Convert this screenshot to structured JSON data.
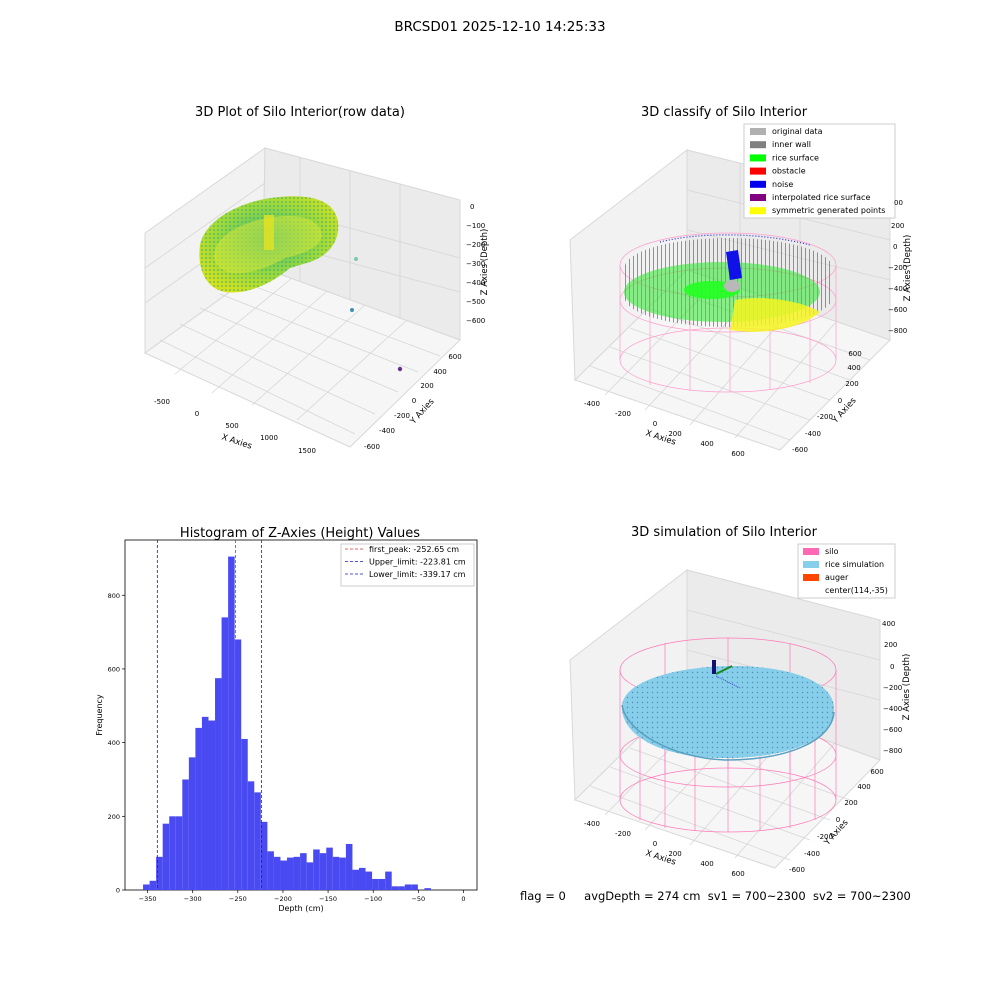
{
  "figure": {
    "suptitle": "BRCSD01 2025-12-10 14:25:33"
  },
  "status": {
    "flag": "flag = 0",
    "avg_depth": "avgDepth = 274 cm",
    "sv1": "sv1 = 700~2300",
    "sv2": "sv2 = 700~2300"
  },
  "chart_data": [
    {
      "type": "scatter",
      "projection": "3d",
      "title": "3D Plot of Silo Interior(row data)",
      "xlabel": "X Axies",
      "ylabel": "Y Axies",
      "zlabel": "Z Axies (Depth)",
      "x_ticks": [
        "-500",
        "0",
        "500",
        "1000",
        "1500"
      ],
      "y_ticks": [
        "-600",
        "-400",
        "-200",
        "0",
        "200",
        "400",
        "600"
      ],
      "z_ticks": [
        "0",
        "−100",
        "−200",
        "−300",
        "−400",
        "−500",
        "−600"
      ],
      "colormap": "viridis",
      "outliers": [
        {
          "color": "#7cc8b0"
        },
        {
          "color": "#3d8fb5"
        },
        {
          "color": "#6a2f8a"
        }
      ]
    },
    {
      "type": "scatter",
      "projection": "3d",
      "title": "3D classify of Silo Interior",
      "xlabel": "X Axies",
      "ylabel": "Y Axies",
      "zlabel": "Z Axies (Depth)",
      "x_ticks": [
        "-400",
        "-200",
        "0",
        "200",
        "400",
        "600"
      ],
      "y_ticks": [
        "-600",
        "-400",
        "-200",
        "0",
        "200",
        "400",
        "600"
      ],
      "z_ticks": [
        "200",
        "0",
        "−200",
        "−400",
        "−600",
        "−800"
      ],
      "z_partial": "00",
      "legend_position": "top-right",
      "legend": [
        {
          "label": "original data",
          "color": "#b0b0b0"
        },
        {
          "label": "inner wall",
          "color": "#808080"
        },
        {
          "label": "rice surface",
          "color": "#00ff00"
        },
        {
          "label": "obstacle",
          "color": "#ff0000"
        },
        {
          "label": "noise",
          "color": "#0000ee"
        },
        {
          "label": "interpolated rice surface",
          "color": "#800080"
        },
        {
          "label": "symmetric generated points",
          "color": "#ffff00"
        }
      ]
    },
    {
      "type": "bar",
      "title": "Histogram of Z-Axies (Height) Values",
      "xlabel": "Depth (cm)",
      "ylabel": "Frequency",
      "xlim": [
        -375,
        15
      ],
      "ylim": [
        0,
        950
      ],
      "x_ticks": [
        "−350",
        "−300",
        "−250",
        "−200",
        "−150",
        "−100",
        "−50",
        "0"
      ],
      "x_tick_values": [
        -350,
        -300,
        -250,
        -200,
        -150,
        -100,
        -50,
        0
      ],
      "y_ticks": [
        "0",
        "200",
        "400",
        "600",
        "800"
      ],
      "y_tick_values": [
        0,
        200,
        400,
        600,
        800
      ],
      "bar_color": "#4a4af2",
      "bin_start": -355,
      "bin_width": 7.25,
      "values": [
        15,
        25,
        90,
        180,
        200,
        200,
        300,
        360,
        440,
        470,
        460,
        575,
        740,
        905,
        680,
        410,
        295,
        265,
        185,
        105,
        90,
        80,
        88,
        90,
        100,
        75,
        110,
        100,
        115,
        90,
        88,
        125,
        55,
        60,
        50,
        30,
        30,
        50,
        10,
        10,
        15,
        15,
        0,
        5
      ],
      "lines": [
        {
          "label": "first_peak: -252.65 cm",
          "x": -252.65,
          "color": "#e03030",
          "style": "dashed"
        },
        {
          "label": "Upper_limit: -223.81 cm",
          "x": -223.81,
          "color": "#1a1ad0",
          "style": "dashed"
        },
        {
          "label": "Lower_limit: -339.17 cm",
          "x": -339.17,
          "color": "#1a1ad0",
          "style": "dashed"
        }
      ],
      "legend_position": "top-right"
    },
    {
      "type": "scatter",
      "projection": "3d",
      "title": "3D simulation of Silo Interior",
      "xlabel": "X Axies",
      "ylabel": "Y Axies",
      "zlabel": "Z Axies (Depth)",
      "x_ticks": [
        "-400",
        "-200",
        "0",
        "200",
        "400",
        "600"
      ],
      "y_ticks": [
        "-600",
        "-400",
        "-200",
        "0",
        "200",
        "400",
        "600"
      ],
      "z_ticks": [
        "400",
        "200",
        "0",
        "−200",
        "−400",
        "−600",
        "−800"
      ],
      "legend_position": "top-right",
      "legend": [
        {
          "label": "silo",
          "color": "#ff69b4"
        },
        {
          "label": "rice simulation",
          "color": "#87ceeb"
        },
        {
          "label": "auger",
          "color": "#ff4500"
        },
        {
          "label": "center(114,-35)",
          "color": ""
        }
      ]
    }
  ]
}
